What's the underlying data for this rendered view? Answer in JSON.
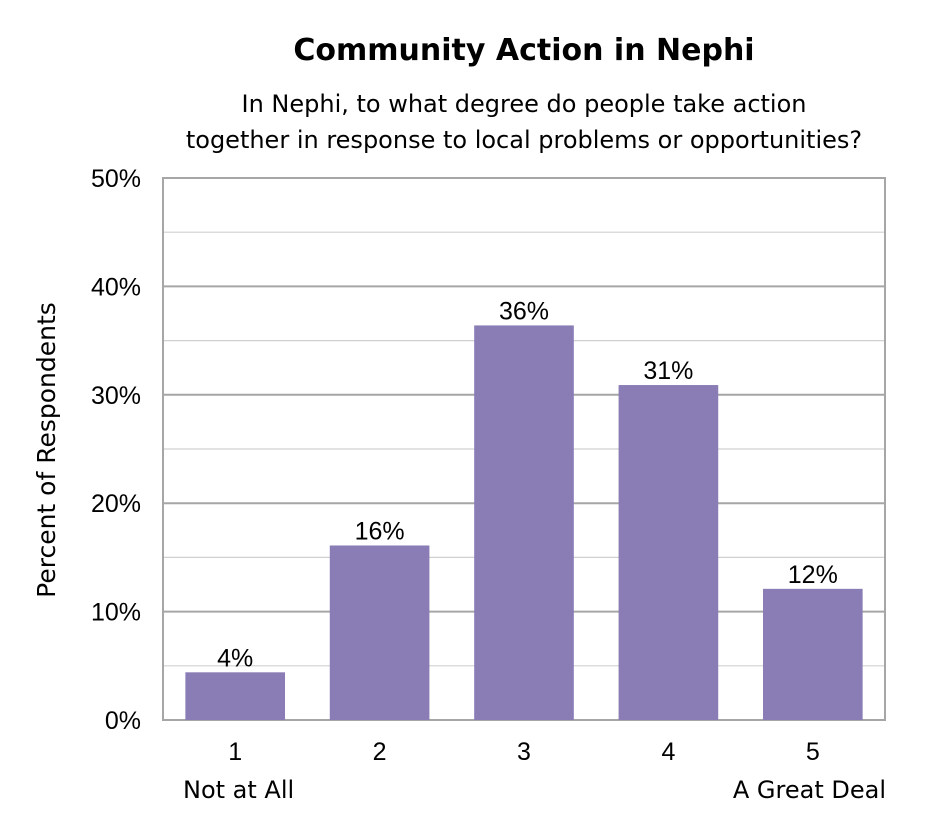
{
  "chart_data": {
    "type": "bar",
    "title": "Community Action in Nephi",
    "subtitle": [
      "In Nephi, to what degree do people take action",
      "together in response to local problems or opportunities?"
    ],
    "xlabel": "",
    "ylabel": "Percent of Respondents",
    "categories": [
      "1",
      "2",
      "3",
      "4",
      "5"
    ],
    "category_sublabels": [
      "Not at All",
      "",
      "",
      "",
      "A Great Deal"
    ],
    "values": [
      4.4,
      16.1,
      36.4,
      30.9,
      12.1
    ],
    "data_labels": [
      "4%",
      "16%",
      "36%",
      "31%",
      "12%"
    ],
    "ylim": [
      0,
      50
    ],
    "y_ticks": [
      0,
      10,
      20,
      30,
      40,
      50
    ],
    "y_tick_labels": [
      "0%",
      "10%",
      "20%",
      "30%",
      "40%",
      "50%"
    ],
    "grid": true,
    "minor_gridlines": true,
    "legend": "none",
    "colors": {
      "bar": "#8A7DB6",
      "grid_major": "#A6A6A6",
      "grid_minor": "#D0D0D0",
      "frame": "#A6A6A6"
    }
  }
}
